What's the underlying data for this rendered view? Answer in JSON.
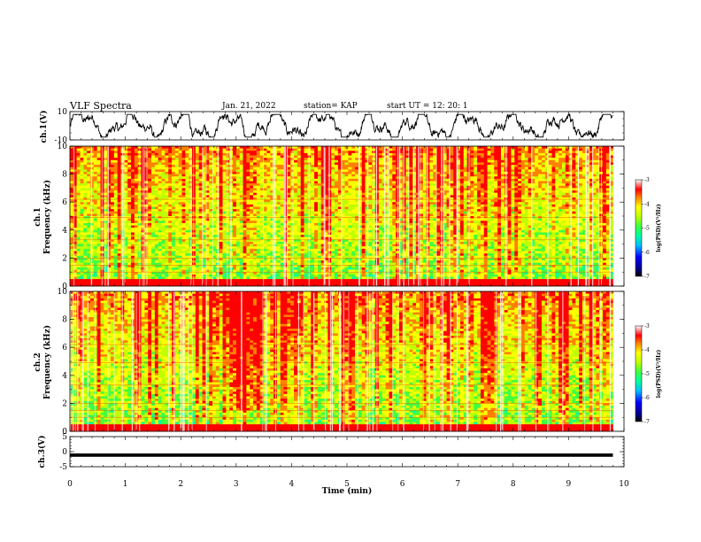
{
  "header": {
    "title": "VLF Spectra",
    "date": "Jan. 21, 2022",
    "station": "station= KAP",
    "start": "start  UT =   12: 20: 1"
  },
  "chart_data": [
    {
      "type": "line",
      "panel": "ch1-waveform",
      "ylabel": "ch.1(V)",
      "ylim": [
        -10,
        10
      ],
      "y_ticks": [
        "10",
        "-10"
      ],
      "x_range_min": [
        0,
        9.8
      ],
      "note_series": "noisy waveform, roughly between -7 and +7 V"
    },
    {
      "type": "heatmap",
      "panel": "ch1-spectrogram",
      "ylabel": "ch.1\nFrequency (kHz)",
      "ylim": [
        0,
        10
      ],
      "y_ticks": [
        "0",
        "2",
        "4",
        "6",
        "8",
        "10"
      ],
      "x_range_min": [
        0,
        9.8
      ],
      "colorbar": {
        "label": "log(PSD)(V²/Hz)",
        "ticks": [
          "-3",
          "-4",
          "-5",
          "-6",
          "-7"
        ],
        "range": [
          -7,
          -3
        ]
      }
    },
    {
      "type": "heatmap",
      "panel": "ch2-spectrogram",
      "ylabel": "ch.2\nFrequency (kHz)",
      "ylim": [
        0,
        10
      ],
      "y_ticks": [
        "0",
        "2",
        "4",
        "6",
        "8",
        "10"
      ],
      "x_range_min": [
        0,
        9.8
      ],
      "colorbar": {
        "label": "log(PSD)(V²/Hz)",
        "ticks": [
          "-3",
          "-4",
          "-5",
          "-6",
          "-7"
        ],
        "range": [
          -7,
          -3
        ]
      }
    },
    {
      "type": "line",
      "panel": "ch3-waveform",
      "ylabel": "ch.3(V)",
      "ylim": [
        -5,
        5
      ],
      "y_ticks": [
        "5",
        "0",
        "-5"
      ],
      "x_range_min": [
        0,
        9.8
      ],
      "note_series": "dense band around -1 V"
    }
  ],
  "x_axis": {
    "label": "Time (min)",
    "range": [
      0,
      10
    ],
    "ticks": [
      "0",
      "1",
      "2",
      "3",
      "4",
      "5",
      "6",
      "7",
      "8",
      "9",
      "10"
    ]
  },
  "colors": {
    "cmap": [
      "#000080",
      "#0000ff",
      "#00c0ff",
      "#00ffa0",
      "#40ff40",
      "#c0ff00",
      "#ffff00",
      "#ff8000",
      "#ff0000",
      "#ffffff"
    ]
  }
}
